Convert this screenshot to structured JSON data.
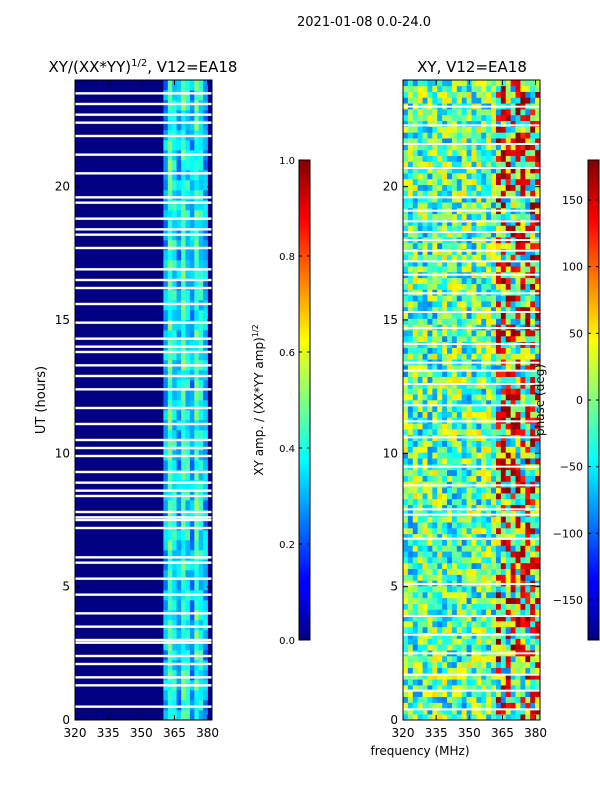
{
  "suptitle": "2021-01-08 0.0-24.0",
  "xlabel": "frequency (MHz)",
  "chart_data": [
    {
      "type": "heatmap",
      "title_main": "XY/(XX*YY)",
      "title_sup": "1/2",
      "title_rest": ", V12=EA18",
      "ylabel": "UT (hours)",
      "xlim": [
        320,
        382
      ],
      "ylim": [
        0,
        24
      ],
      "xticks": [
        320,
        335,
        350,
        365,
        380
      ],
      "yticks": [
        0,
        5,
        10,
        15,
        20
      ],
      "bright_band_mhz": [
        360,
        380
      ],
      "blank_hours": [
        0.5,
        1.3,
        1.6,
        2.1,
        2.4,
        2.9,
        3.0,
        3.5,
        4.0,
        4.7,
        5.3,
        5.9,
        6.1,
        7.2,
        7.5,
        7.6,
        7.8,
        8.4,
        8.6,
        8.9,
        9.3,
        9.9,
        10.2,
        10.5,
        11.1,
        11.7,
        12.4,
        12.9,
        13.3,
        13.8,
        14.0,
        14.3,
        14.9,
        15.6,
        16.2,
        16.5,
        16.9,
        17.7,
        18.2,
        18.4,
        18.8,
        19.4,
        19.6,
        20.5,
        21.2,
        21.9,
        22.4,
        22.7,
        23.1,
        23.5
      ],
      "colorbar": {
        "label_main": "XY amp. / (XX*YY amp)",
        "label_sup": "1/2",
        "min": 0.0,
        "max": 1.0,
        "ticks": [
          "0.0",
          "0.2",
          "0.4",
          "0.6",
          "0.8",
          "1.0"
        ],
        "tick_values": [
          0.0,
          0.2,
          0.4,
          0.6,
          0.8,
          1.0
        ]
      }
    },
    {
      "type": "heatmap",
      "title": "XY, V12=EA18",
      "xlim": [
        320,
        382
      ],
      "ylim": [
        0,
        24
      ],
      "xticks": [
        320,
        335,
        350,
        365,
        380
      ],
      "yticks": [
        0,
        5,
        10,
        15,
        20
      ],
      "blank_hours": [
        0.4,
        1.1,
        1.7,
        2.5,
        3.2,
        3.9,
        5.1,
        6.8,
        7.7,
        7.9,
        8.8,
        9.5,
        10.6,
        11.2,
        11.8,
        12.6,
        13.1,
        13.4,
        14.1,
        14.7,
        15.3,
        16.0,
        16.7,
        17.2,
        17.6,
        18.0,
        18.3,
        18.7,
        19.1,
        19.6,
        20.7,
        21.6,
        22.3,
        23.0
      ],
      "colorbar": {
        "label": "phase (deg)",
        "min": -180,
        "max": 180,
        "ticks": [
          "150",
          "100",
          "50",
          "0",
          "−50",
          "−100",
          "−150"
        ],
        "tick_values": [
          150,
          100,
          50,
          0,
          -50,
          -100,
          -150
        ]
      }
    }
  ]
}
